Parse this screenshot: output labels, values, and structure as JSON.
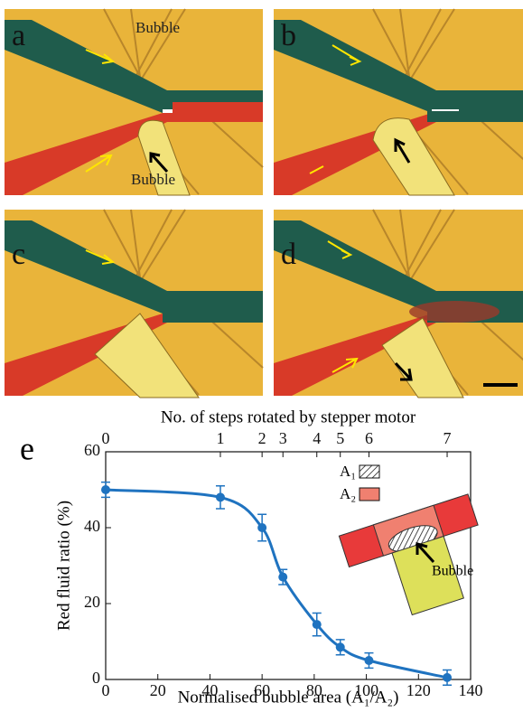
{
  "panels": [
    {
      "label": "a",
      "annotations": [
        "Bubble",
        "Bubble"
      ]
    },
    {
      "label": "b"
    },
    {
      "label": "c"
    },
    {
      "label": "d"
    }
  ],
  "chart_data": {
    "type": "line",
    "panel_label": "e",
    "top_axis_label": "No. of steps rotated by stepper motor",
    "top_axis_steps": [
      0,
      1,
      2,
      3,
      4,
      5,
      6,
      7
    ],
    "xlabel": "Normalised bubble area (A₁/A₂)",
    "ylabel": "Red fluid ratio (%)",
    "x": [
      0,
      44,
      60,
      68,
      81,
      90,
      101,
      131
    ],
    "series": [
      {
        "color": "#1f73c0",
        "values": [
          50,
          48,
          40,
          27,
          14.5,
          8.5,
          5,
          0.5
        ],
        "errors": [
          2,
          3,
          3.5,
          2,
          3,
          2,
          2,
          2
        ]
      }
    ],
    "xlim": [
      0,
      140
    ],
    "ylim": [
      0,
      60
    ],
    "xticks": [
      0,
      20,
      40,
      60,
      80,
      100,
      120,
      140
    ],
    "yticks": [
      0,
      20,
      40,
      60
    ],
    "inset": {
      "legend": [
        "A₁",
        "A₂"
      ],
      "label": "Bubble",
      "colors": [
        "#ffffff",
        "#f08070"
      ]
    }
  }
}
